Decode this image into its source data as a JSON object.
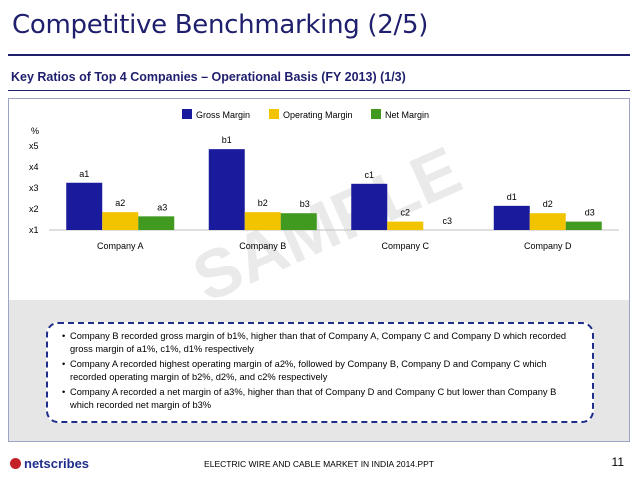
{
  "slide": {
    "title": "Competitive Benchmarking (2/5)",
    "subtitle": "Key Ratios of Top 4 Companies – Operational Basis (FY 2013) (1/3)",
    "watermark": "SAMPLE",
    "footer_text": "ELECTRIC WIRE AND CABLE MARKET IN INDIA 2014.PPT",
    "page_number": "11",
    "logo_text": "netscribes"
  },
  "bullets": [
    "Company B recorded gross margin of b1%, higher than that of Company A, Company C and Company D which recorded gross margin of a1%, c1%, d1% respectively",
    "Company A recorded highest operating margin of a2%, followed by Company B, Company D and Company C which recorded operating margin of  b2%, d2%, and c2% respectively",
    "Company A recorded a net margin of a3%, higher than that of Company D and Company C but lower than Company B which recorded net margin of b3%"
  ],
  "chart_data": {
    "type": "bar",
    "title": "",
    "ylabel": "%",
    "xlabel": "",
    "categories": [
      "Company A",
      "Company B",
      "Company C",
      "Company D"
    ],
    "y_ticks": [
      "x1",
      "x2",
      "x3",
      "x4",
      "x5"
    ],
    "ylim": [
      1,
      5
    ],
    "legend_position": "top",
    "series": [
      {
        "name": "Gross Margin",
        "color": "#1a1a9c",
        "values": [
          3.25,
          4.85,
          3.2,
          2.15
        ],
        "labels": [
          "a1",
          "b1",
          "c1",
          "d1"
        ]
      },
      {
        "name": "Operating Margin",
        "color": "#f2c400",
        "values": [
          1.85,
          1.85,
          1.4,
          1.8
        ],
        "labels": [
          "a2",
          "b2",
          "c2",
          "d2"
        ]
      },
      {
        "name": "Net Margin",
        "color": "#3f9a1f",
        "values": [
          1.65,
          1.8,
          1.0,
          1.4
        ],
        "labels": [
          "a3",
          "b3",
          "c3",
          "d3"
        ]
      }
    ]
  }
}
